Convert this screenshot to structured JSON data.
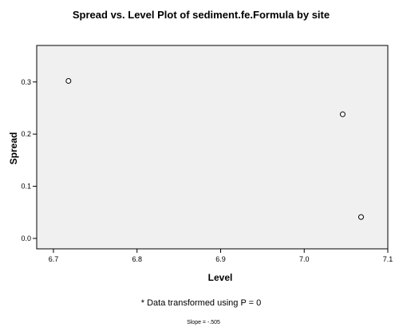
{
  "chart_data": {
    "type": "scatter",
    "title": "Spread vs. Level Plot of sediment.fe.Formula by site",
    "xlabel": "Level",
    "ylabel": "Spread",
    "x_ticks": [
      6.7,
      6.8,
      6.9,
      7.0,
      7.1
    ],
    "x_tick_labels": [
      "6.7",
      "6.8",
      "6.9",
      "7.0",
      "7.1"
    ],
    "y_ticks": [
      0.0,
      0.1,
      0.2,
      0.3
    ],
    "y_tick_labels": [
      "0.0",
      "0.1",
      "0.2",
      "0.3"
    ],
    "xlim": [
      6.68,
      7.1
    ],
    "ylim": [
      -0.02,
      0.37
    ],
    "grid": false,
    "marker": "hollow-circle",
    "points": [
      {
        "x": 6.718,
        "y": 0.302
      },
      {
        "x": 7.046,
        "y": 0.238
      },
      {
        "x": 7.068,
        "y": 0.041
      }
    ],
    "footnote": "* Data transformed using P = 0",
    "slope_note": "Slope = -.505"
  },
  "colors": {
    "plot_background": "#f0f0f0",
    "frame": "#000000",
    "marker_stroke": "#000000",
    "marker_fill": "#ffffff"
  }
}
